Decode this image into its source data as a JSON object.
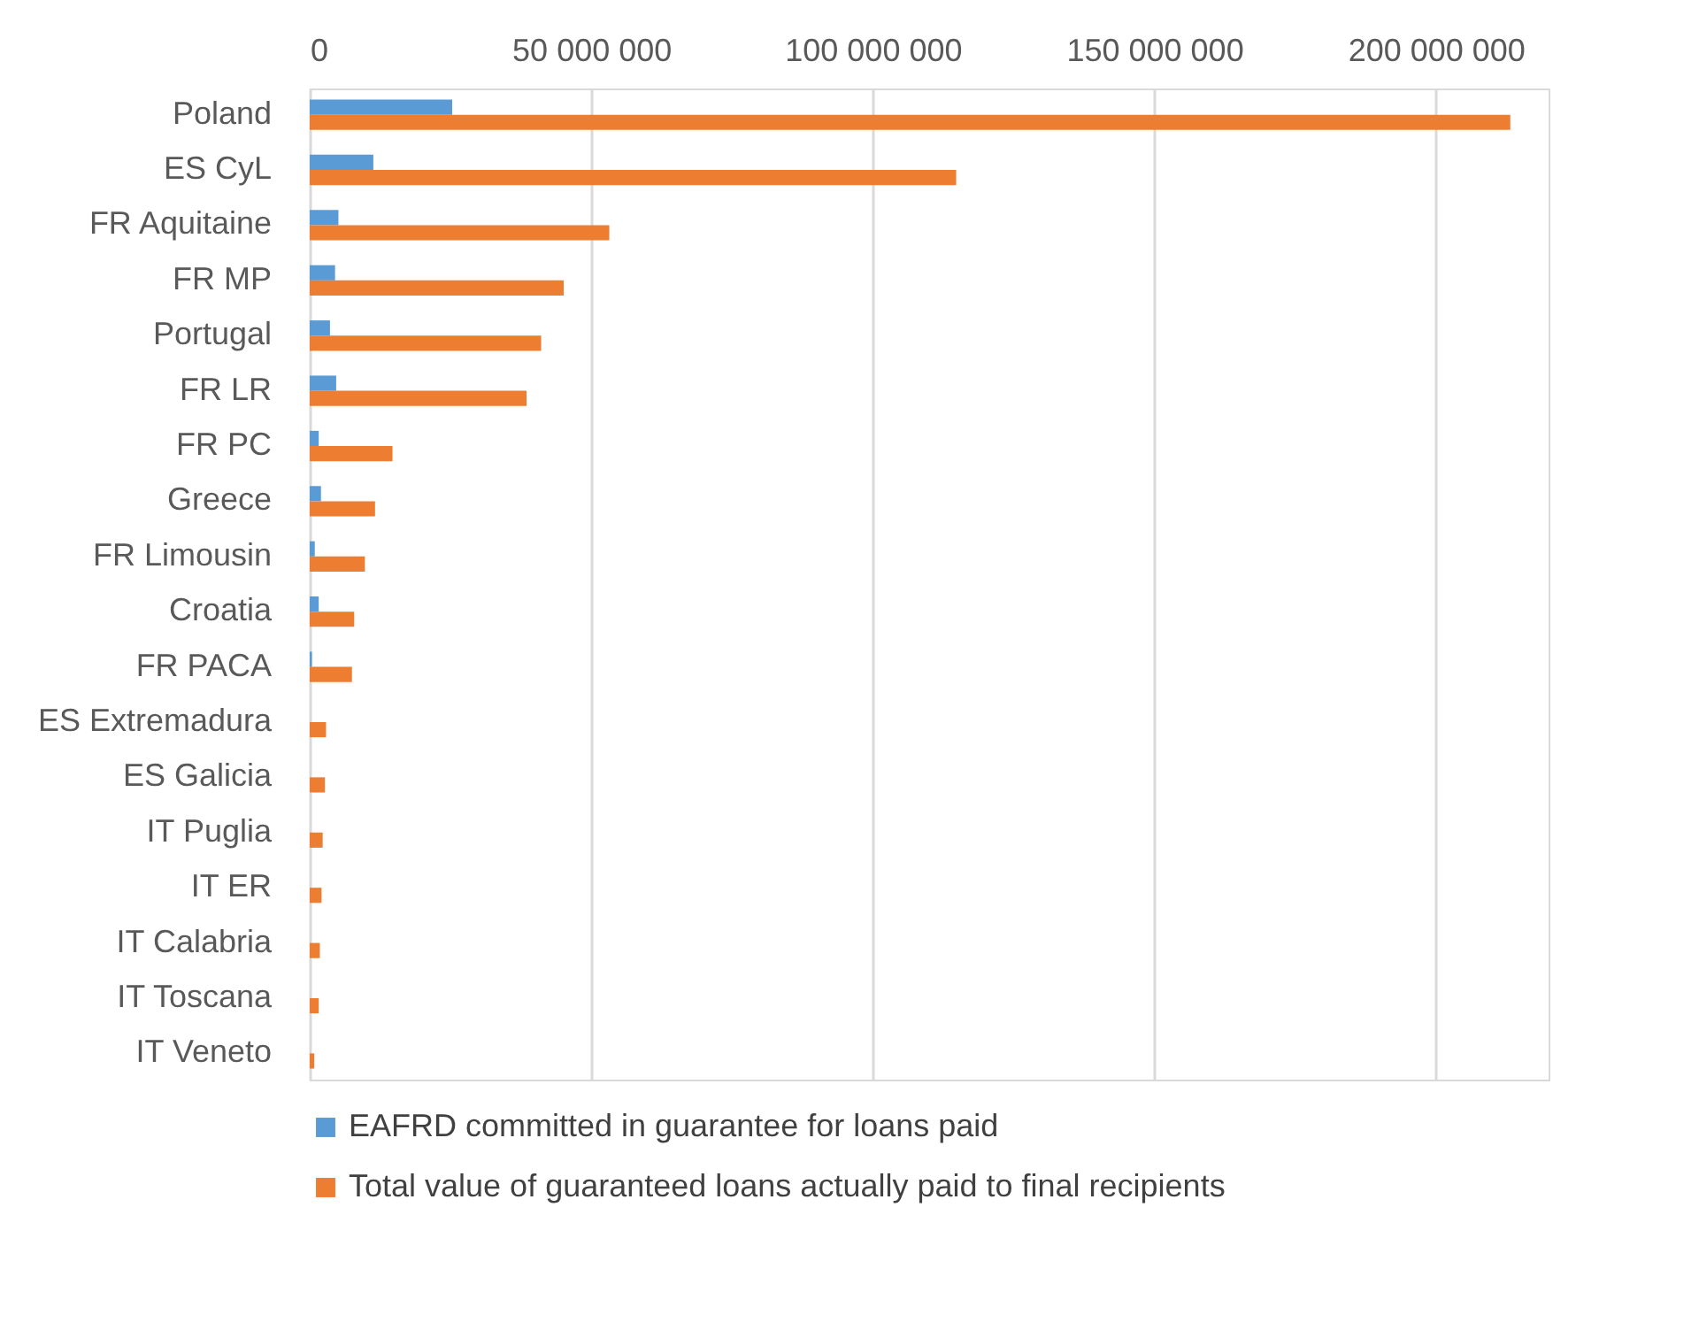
{
  "chart_data": {
    "type": "bar",
    "orientation": "horizontal",
    "categories": [
      "Poland",
      "ES CyL",
      "FR Aquitaine",
      "FR MP",
      "Portugal",
      "FR LR",
      "FR PC",
      "Greece",
      "FR Limousin",
      "Croatia",
      "FR PACA",
      "ES Extremadura",
      "ES Galicia",
      "IT Puglia",
      "IT ER",
      "IT Calabria",
      "IT Toscana",
      "IT Veneto"
    ],
    "series": [
      {
        "name": "EAFRD committed in guarantee for loans paid",
        "color": "#5b9bd5",
        "values": [
          25300000,
          11300000,
          5100000,
          4500000,
          3600000,
          4700000,
          1600000,
          2000000,
          900000,
          1600000,
          400000,
          0,
          0,
          0,
          0,
          0,
          0,
          0
        ]
      },
      {
        "name": "Total value of guaranteed loans actually paid to final recipients",
        "color": "#ed7d31",
        "values": [
          213200000,
          114800000,
          53200000,
          45100000,
          41100000,
          38500000,
          14700000,
          11600000,
          9800000,
          7900000,
          7500000,
          2900000,
          2700000,
          2300000,
          2100000,
          1800000,
          1600000,
          800000
        ]
      }
    ],
    "xlim": [
      0,
      220000000
    ],
    "xticks": [
      0,
      {
        "value": 50000000,
        "label": "50 000 000"
      },
      {
        "value": 100000000,
        "label": "100 000 000"
      },
      {
        "value": 150000000,
        "label": "150 000 000"
      },
      {
        "value": 200000000,
        "label": "200 000 000"
      }
    ],
    "grid": "x",
    "legend": "bottom"
  }
}
